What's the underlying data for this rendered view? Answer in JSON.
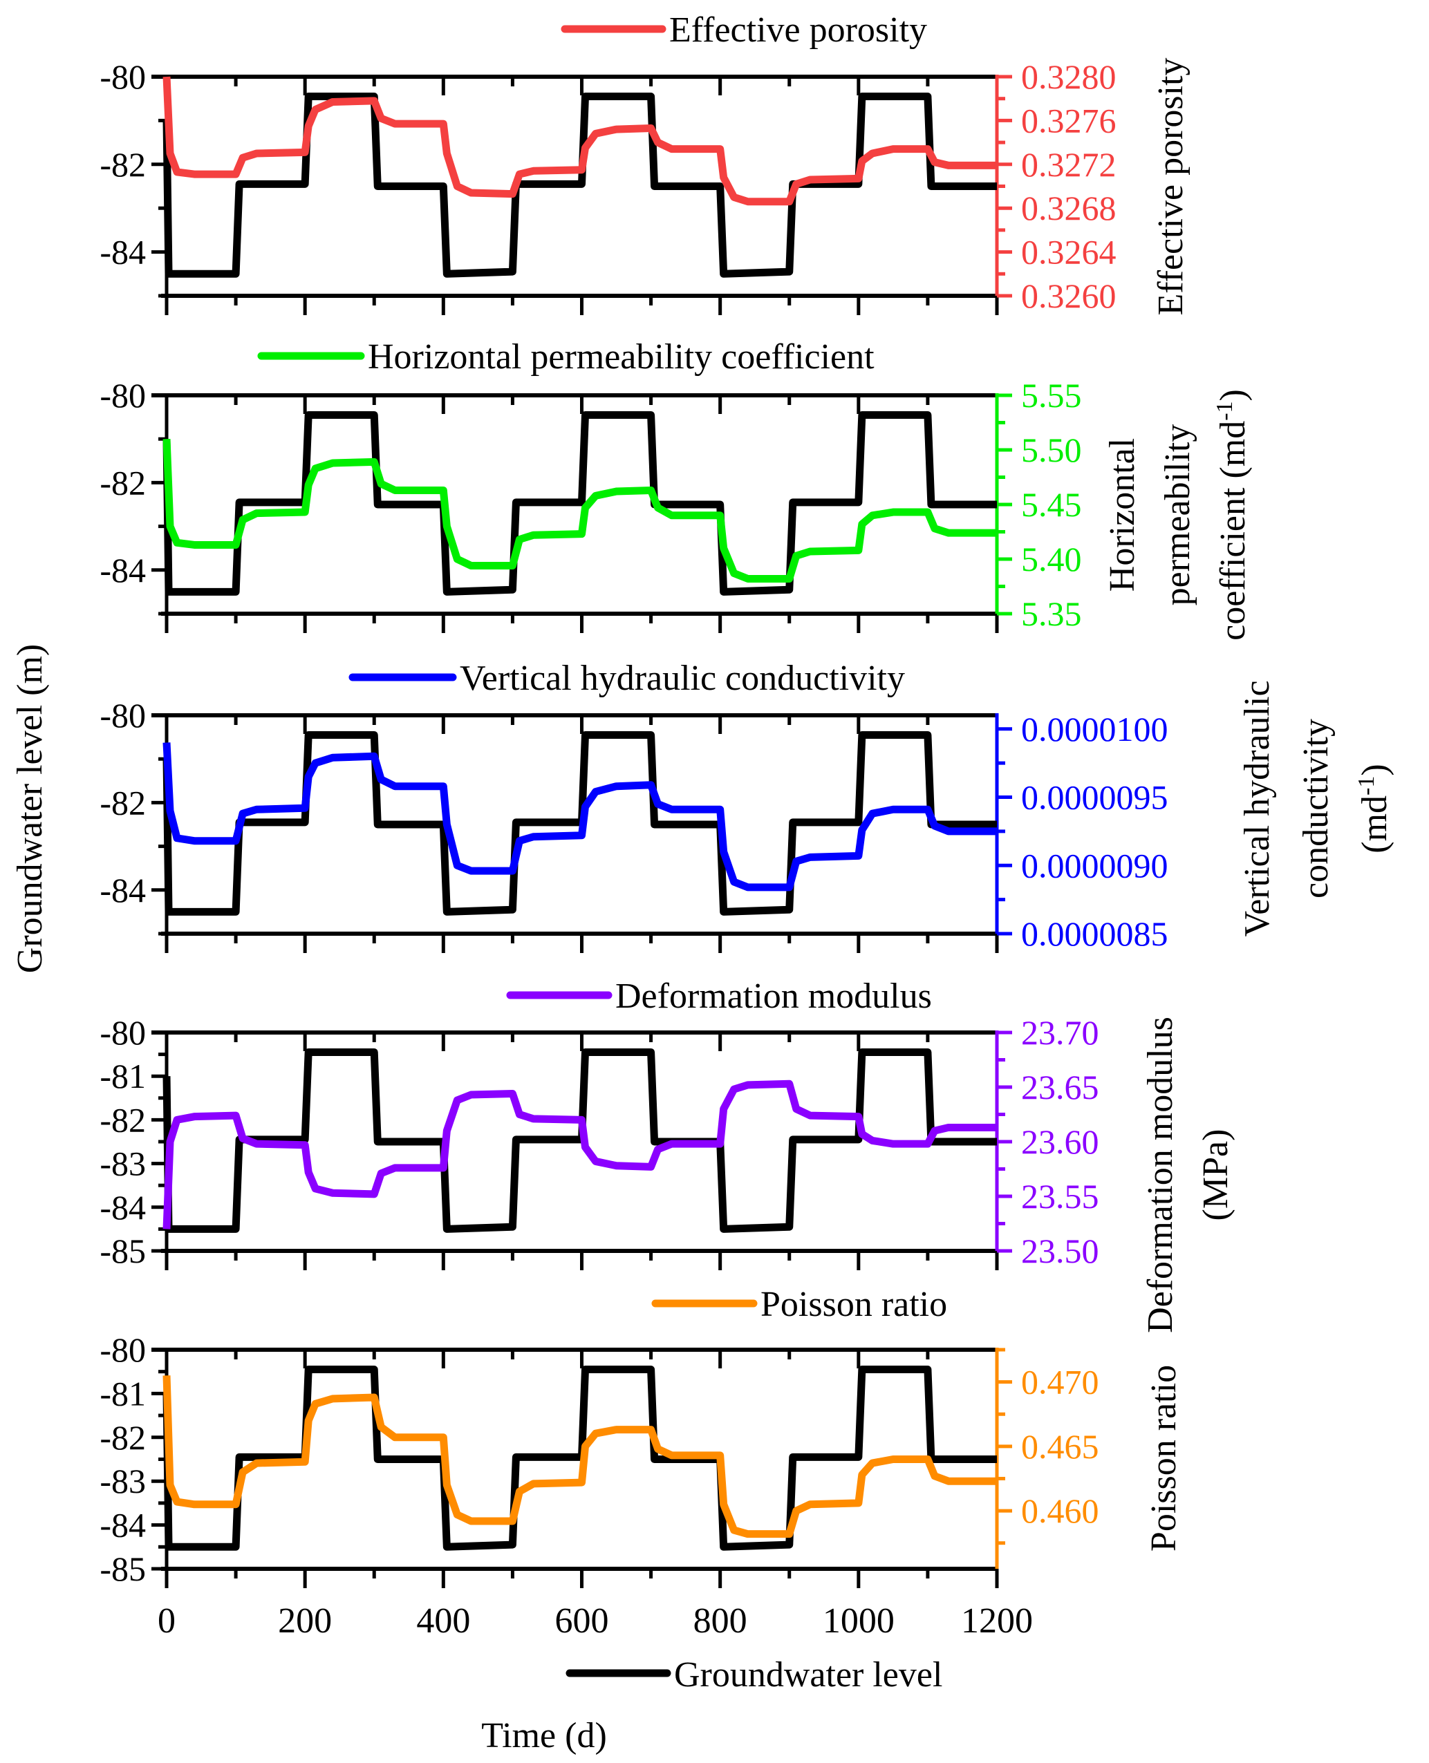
{
  "chart_data": [
    {
      "type": "line",
      "panel": 1,
      "legend": "Effective porosity",
      "color": "#f44040",
      "xlabel": "",
      "ylabel_left": "",
      "ylabel_right": "Effective porosity",
      "x_range": [
        0,
        1200
      ],
      "y_left_range": [
        -85,
        -80
      ],
      "y_left_ticks": [
        -80,
        -82,
        -84
      ],
      "y_left_tick_labels": [
        "-80",
        "-82",
        "-84"
      ],
      "y_right_range": [
        0.326,
        0.328
      ],
      "y_right_ticks": [
        0.328,
        0.3276,
        0.3272,
        0.3268,
        0.3264,
        0.326
      ],
      "y_right_tick_labels": [
        "0.3280",
        "0.3276",
        "0.3272",
        "0.3268",
        "0.3264",
        "0.3260"
      ],
      "series": {
        "name": "Effective porosity",
        "x": [
          0,
          5,
          15,
          40,
          100,
          110,
          130,
          200,
          205,
          215,
          240,
          300,
          310,
          330,
          400,
          405,
          420,
          440,
          500,
          510,
          530,
          600,
          605,
          620,
          650,
          700,
          710,
          730,
          800,
          805,
          820,
          840,
          900,
          910,
          930,
          1000,
          1005,
          1020,
          1050,
          1100,
          1110,
          1130,
          1200
        ],
        "values": [
          0.328,
          0.3273,
          0.32713,
          0.32711,
          0.32711,
          0.32726,
          0.3273,
          0.32731,
          0.32755,
          0.3277,
          0.32777,
          0.32778,
          0.32762,
          0.32757,
          0.32757,
          0.3273,
          0.327,
          0.32694,
          0.32693,
          0.32711,
          0.32714,
          0.32715,
          0.32735,
          0.32748,
          0.32752,
          0.32753,
          0.3274,
          0.32734,
          0.32734,
          0.32708,
          0.3269,
          0.32686,
          0.32686,
          0.32702,
          0.32706,
          0.32707,
          0.32723,
          0.3273,
          0.32734,
          0.32734,
          0.32722,
          0.32719,
          0.32719
        ]
      }
    },
    {
      "type": "line",
      "panel": 2,
      "legend": "Horizontal permeability coefficient",
      "color": "#00ee00",
      "ylabel_right": "Horizontal permeability coefficient (md-1)",
      "ylabel_right_lines": [
        "Horizontal",
        "permeability",
        "coefficient (md",
        "-1",
        ")"
      ],
      "x_range": [
        0,
        1200
      ],
      "y_left_range": [
        -85,
        -80
      ],
      "y_left_ticks": [
        -80,
        -82,
        -84
      ],
      "y_left_tick_labels": [
        "-80",
        "-82",
        "-84"
      ],
      "y_right_range": [
        5.35,
        5.55
      ],
      "y_right_ticks": [
        5.55,
        5.5,
        5.45,
        5.4,
        5.35
      ],
      "y_right_tick_labels": [
        "5.55",
        "5.50",
        "5.45",
        "5.40",
        "5.35"
      ],
      "series": {
        "name": "Horizontal permeability coefficient",
        "x": [
          0,
          5,
          15,
          40,
          100,
          110,
          130,
          200,
          205,
          215,
          240,
          300,
          310,
          330,
          400,
          405,
          420,
          440,
          500,
          510,
          530,
          600,
          605,
          620,
          650,
          700,
          710,
          730,
          800,
          805,
          820,
          840,
          900,
          910,
          930,
          1000,
          1005,
          1020,
          1050,
          1100,
          1110,
          1130,
          1200
        ],
        "values": [
          5.51,
          5.43,
          5.415,
          5.413,
          5.413,
          5.436,
          5.442,
          5.443,
          5.468,
          5.483,
          5.488,
          5.489,
          5.469,
          5.463,
          5.463,
          5.43,
          5.4,
          5.394,
          5.394,
          5.418,
          5.422,
          5.423,
          5.447,
          5.458,
          5.462,
          5.463,
          5.447,
          5.44,
          5.44,
          5.41,
          5.387,
          5.382,
          5.382,
          5.403,
          5.407,
          5.408,
          5.432,
          5.44,
          5.443,
          5.443,
          5.428,
          5.424,
          5.424
        ]
      }
    },
    {
      "type": "line",
      "panel": 3,
      "legend": "Vertical hydraulic conductivity",
      "color": "#0000ff",
      "ylabel_right": "Vertical hydraulic conductivity (md-1)",
      "ylabel_right_lines": [
        "Vertical hydraulic",
        "conductivity",
        "(md",
        "-1",
        ")"
      ],
      "x_range": [
        0,
        1200
      ],
      "y_left_range": [
        -85,
        -80
      ],
      "y_left_ticks": [
        -80,
        -82,
        -84
      ],
      "y_left_tick_labels": [
        "-80",
        "-82",
        "-84"
      ],
      "y_right_range": [
        8.5e-06,
        1.01e-05
      ],
      "y_right_ticks": [
        1e-05,
        9.5e-06,
        9e-06,
        8.5e-06
      ],
      "y_right_tick_labels": [
        "0.0000100",
        "0.0000095",
        "0.0000090",
        "0.0000085"
      ],
      "series": {
        "name": "Vertical hydraulic conductivity",
        "x": [
          0,
          5,
          15,
          40,
          100,
          110,
          130,
          200,
          205,
          215,
          240,
          300,
          310,
          330,
          400,
          405,
          420,
          440,
          500,
          510,
          530,
          600,
          605,
          620,
          650,
          700,
          710,
          730,
          800,
          805,
          820,
          840,
          900,
          910,
          930,
          1000,
          1005,
          1020,
          1050,
          1100,
          1110,
          1130,
          1200
        ],
        "values": [
          9.9e-06,
          9.4e-06,
          9.2e-06,
          9.18e-06,
          9.18e-06,
          9.38e-06,
          9.41e-06,
          9.42e-06,
          9.65e-06,
          9.75e-06,
          9.79e-06,
          9.8e-06,
          9.63e-06,
          9.58e-06,
          9.58e-06,
          9.3e-06,
          9e-06,
          8.96e-06,
          8.96e-06,
          9.18e-06,
          9.21e-06,
          9.22e-06,
          9.43e-06,
          9.54e-06,
          9.58e-06,
          9.59e-06,
          9.45e-06,
          9.41e-06,
          9.41e-06,
          9.1e-06,
          8.88e-06,
          8.84e-06,
          8.84e-06,
          9.03e-06,
          9.06e-06,
          9.07e-06,
          9.26e-06,
          9.38e-06,
          9.41e-06,
          9.41e-06,
          9.29e-06,
          9.25e-06,
          9.25e-06
        ]
      }
    },
    {
      "type": "line",
      "panel": 4,
      "legend": "Deformation modulus",
      "color": "#8a00ff",
      "ylabel_right": "Deformation modulus (MPa)",
      "ylabel_right_lines": [
        "Deformation modulus",
        "(MPa)"
      ],
      "x_range": [
        0,
        1200
      ],
      "y_left_range": [
        -85,
        -80
      ],
      "y_left_ticks": [
        -80,
        -81,
        -82,
        -83,
        -84,
        -85
      ],
      "y_left_tick_labels": [
        "-80",
        "-81",
        "-82",
        "-83",
        "-84",
        "-85"
      ],
      "y_right_range": [
        23.5,
        23.7
      ],
      "y_right_ticks": [
        23.7,
        23.65,
        23.6,
        23.55,
        23.5
      ],
      "y_right_tick_labels": [
        "23.70",
        "23.65",
        "23.60",
        "23.55",
        "23.50"
      ],
      "series": {
        "name": "Deformation modulus",
        "x": [
          0,
          5,
          15,
          40,
          100,
          110,
          130,
          200,
          205,
          215,
          240,
          300,
          310,
          330,
          400,
          405,
          420,
          440,
          500,
          510,
          530,
          600,
          605,
          620,
          650,
          700,
          710,
          730,
          800,
          805,
          820,
          840,
          900,
          910,
          930,
          1000,
          1005,
          1020,
          1050,
          1100,
          1110,
          1130,
          1200
        ],
        "values": [
          23.52,
          23.6,
          23.62,
          23.623,
          23.624,
          23.603,
          23.598,
          23.597,
          23.572,
          23.557,
          23.553,
          23.552,
          23.571,
          23.576,
          23.576,
          23.61,
          23.638,
          23.643,
          23.644,
          23.625,
          23.621,
          23.62,
          23.595,
          23.582,
          23.578,
          23.577,
          23.593,
          23.598,
          23.598,
          23.63,
          23.648,
          23.652,
          23.653,
          23.63,
          23.624,
          23.623,
          23.607,
          23.601,
          23.598,
          23.598,
          23.61,
          23.613,
          23.613
        ]
      }
    },
    {
      "type": "line",
      "panel": 5,
      "legend": "Poisson ratio",
      "color": "#ff8c00",
      "xlabel": "Time (d)",
      "ylabel_right": "Poisson ratio",
      "x_range": [
        0,
        1200
      ],
      "x_ticks": [
        0,
        200,
        400,
        600,
        800,
        1000,
        1200
      ],
      "x_tick_labels": [
        "0",
        "200",
        "400",
        "600",
        "800",
        "1000",
        "1200"
      ],
      "y_left_range": [
        -85,
        -80
      ],
      "y_left_ticks": [
        -80,
        -81,
        -82,
        -83,
        -84,
        -85
      ],
      "y_left_tick_labels": [
        "-80",
        "-81",
        "-82",
        "-83",
        "-84",
        "-85"
      ],
      "y_right_range": [
        0.4555,
        0.4725
      ],
      "y_right_ticks": [
        0.47,
        0.465,
        0.46
      ],
      "y_right_tick_labels": [
        "0.470",
        "0.465",
        "0.460"
      ],
      "series": {
        "name": "Poisson ratio",
        "x": [
          0,
          5,
          15,
          40,
          100,
          110,
          130,
          200,
          205,
          215,
          240,
          300,
          310,
          330,
          400,
          405,
          420,
          440,
          500,
          510,
          530,
          600,
          605,
          620,
          650,
          700,
          710,
          730,
          800,
          805,
          820,
          840,
          900,
          910,
          930,
          1000,
          1005,
          1020,
          1050,
          1100,
          1110,
          1130,
          1200
        ],
        "values": [
          0.4705,
          0.462,
          0.4607,
          0.4605,
          0.4605,
          0.463,
          0.4637,
          0.4638,
          0.467,
          0.4683,
          0.4687,
          0.4688,
          0.4665,
          0.4657,
          0.4657,
          0.462,
          0.4597,
          0.4592,
          0.4592,
          0.4615,
          0.4621,
          0.4622,
          0.465,
          0.466,
          0.4663,
          0.4663,
          0.4648,
          0.4643,
          0.4643,
          0.4605,
          0.4585,
          0.4582,
          0.4582,
          0.46,
          0.4605,
          0.4606,
          0.4628,
          0.4637,
          0.464,
          0.464,
          0.4627,
          0.4623,
          0.4623
        ]
      }
    }
  ],
  "groundwater_level": {
    "name": "Groundwater level",
    "color": "#000000",
    "x": [
      0,
      3,
      100,
      105,
      200,
      205,
      300,
      305,
      400,
      405,
      500,
      505,
      600,
      605,
      700,
      705,
      800,
      805,
      900,
      905,
      1000,
      1005,
      1100,
      1105,
      1200
    ],
    "values": [
      -81.0,
      -84.5,
      -84.5,
      -82.45,
      -82.45,
      -80.45,
      -80.45,
      -82.5,
      -82.5,
      -84.5,
      -84.45,
      -82.45,
      -82.45,
      -80.45,
      -80.45,
      -82.5,
      -82.5,
      -84.5,
      -84.45,
      -82.45,
      -82.45,
      -80.45,
      -80.45,
      -82.5,
      -82.5
    ]
  },
  "shared": {
    "ylabel_left": "Groundwater level (m)",
    "xlabel": "Time (d)",
    "bottom_legend": "Groundwater level"
  }
}
